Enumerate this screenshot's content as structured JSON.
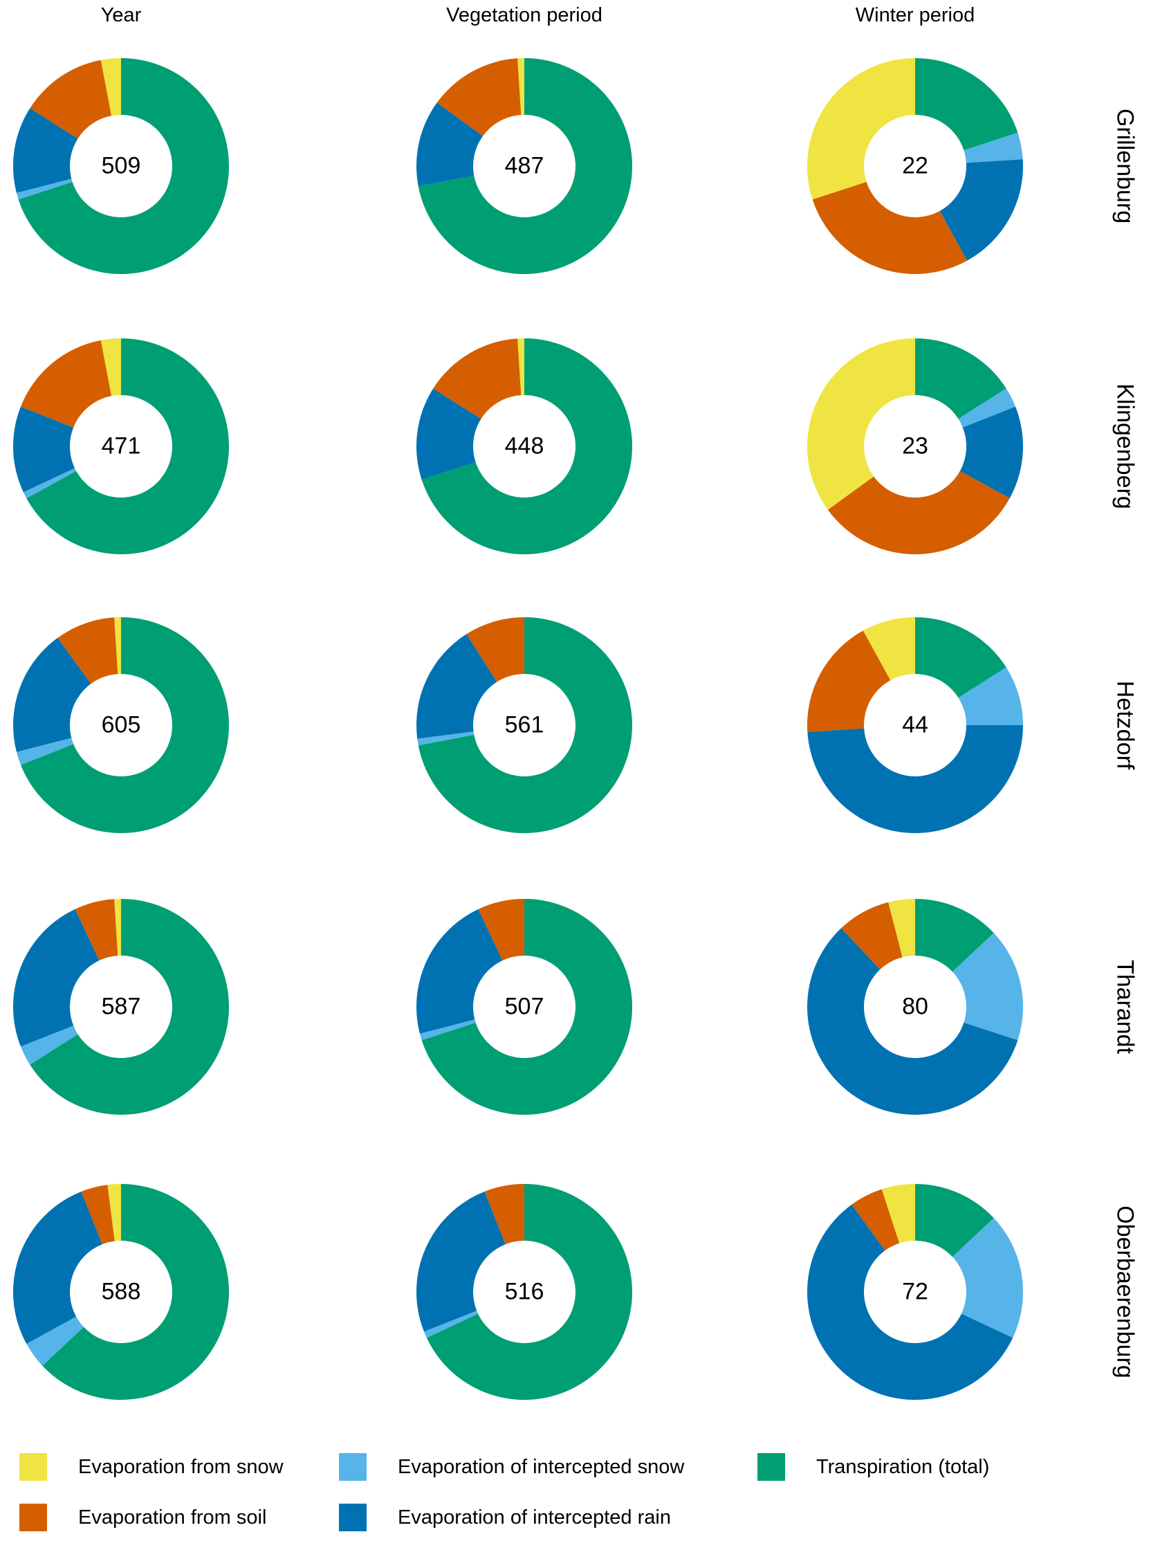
{
  "header": {
    "columns": [
      "Year",
      "Vegetation period",
      "Winter period"
    ]
  },
  "row_labels": [
    "Grillenburg",
    "Klingenberg",
    "Hetzdorf",
    "Tharandt",
    "Oberbaerenburg"
  ],
  "colors": {
    "snow": "#F0E442",
    "soil": "#D55E00",
    "intercepted_snow": "#56B4E9",
    "intercepted_rain": "#0072B2",
    "transpiration": "#009E73"
  },
  "legend": {
    "items": [
      {
        "key": "snow",
        "label": "Evaporation from snow"
      },
      {
        "key": "soil",
        "label": "Evaporation from soil"
      },
      {
        "key": "intercepted_snow",
        "label": "Evaporation of intercepted snow"
      },
      {
        "key": "intercepted_rain",
        "label": "Evaporation of intercepted rain"
      },
      {
        "key": "transpiration",
        "label": "Transpiration (total)"
      }
    ]
  },
  "chart_data": {
    "type": "pie",
    "variant": "donut-grid",
    "columns": [
      "Year",
      "Vegetation period",
      "Winter period"
    ],
    "rows": [
      "Grillenburg",
      "Klingenberg",
      "Hetzdorf",
      "Tharandt",
      "Oberbaerenburg"
    ],
    "segment_order_clockwise": [
      "transpiration",
      "intercepted_snow",
      "intercepted_rain",
      "soil",
      "snow"
    ],
    "center_value_meaning": "total shown in donut hole",
    "cells": [
      {
        "row": "Grillenburg",
        "column": "Year",
        "total": 509,
        "segments_percent": {
          "transpiration": 70,
          "intercepted_snow": 1,
          "intercepted_rain": 13,
          "soil": 13,
          "snow": 3
        }
      },
      {
        "row": "Grillenburg",
        "column": "Vegetation period",
        "total": 487,
        "segments_percent": {
          "transpiration": 72,
          "intercepted_snow": 0,
          "intercepted_rain": 13,
          "soil": 14,
          "snow": 1
        }
      },
      {
        "row": "Grillenburg",
        "column": "Winter period",
        "total": 22,
        "segments_percent": {
          "transpiration": 20,
          "intercepted_snow": 4,
          "intercepted_rain": 18,
          "soil": 28,
          "snow": 30
        }
      },
      {
        "row": "Klingenberg",
        "column": "Year",
        "total": 471,
        "segments_percent": {
          "transpiration": 67,
          "intercepted_snow": 1,
          "intercepted_rain": 13,
          "soil": 16,
          "snow": 3
        }
      },
      {
        "row": "Klingenberg",
        "column": "Vegetation period",
        "total": 448,
        "segments_percent": {
          "transpiration": 70,
          "intercepted_snow": 0,
          "intercepted_rain": 14,
          "soil": 15,
          "snow": 1
        }
      },
      {
        "row": "Klingenberg",
        "column": "Winter period",
        "total": 23,
        "segments_percent": {
          "transpiration": 16,
          "intercepted_snow": 3,
          "intercepted_rain": 14,
          "soil": 32,
          "snow": 35
        }
      },
      {
        "row": "Hetzdorf",
        "column": "Year",
        "total": 605,
        "segments_percent": {
          "transpiration": 69,
          "intercepted_snow": 2,
          "intercepted_rain": 19,
          "soil": 9,
          "snow": 1
        }
      },
      {
        "row": "Hetzdorf",
        "column": "Vegetation period",
        "total": 561,
        "segments_percent": {
          "transpiration": 72,
          "intercepted_snow": 1,
          "intercepted_rain": 18,
          "soil": 9,
          "snow": 0
        }
      },
      {
        "row": "Hetzdorf",
        "column": "Winter period",
        "total": 44,
        "segments_percent": {
          "transpiration": 16,
          "intercepted_snow": 9,
          "intercepted_rain": 49,
          "soil": 18,
          "snow": 8
        }
      },
      {
        "row": "Tharandt",
        "column": "Year",
        "total": 587,
        "segments_percent": {
          "transpiration": 66,
          "intercepted_snow": 3,
          "intercepted_rain": 24,
          "soil": 6,
          "snow": 1
        }
      },
      {
        "row": "Tharandt",
        "column": "Vegetation period",
        "total": 507,
        "segments_percent": {
          "transpiration": 70,
          "intercepted_snow": 1,
          "intercepted_rain": 22,
          "soil": 7,
          "snow": 0
        }
      },
      {
        "row": "Tharandt",
        "column": "Winter period",
        "total": 80,
        "segments_percent": {
          "transpiration": 13,
          "intercepted_snow": 17,
          "intercepted_rain": 58,
          "soil": 8,
          "snow": 4
        }
      },
      {
        "row": "Oberbaerenburg",
        "column": "Year",
        "total": 588,
        "segments_percent": {
          "transpiration": 63,
          "intercepted_snow": 4,
          "intercepted_rain": 27,
          "soil": 4,
          "snow": 2
        }
      },
      {
        "row": "Oberbaerenburg",
        "column": "Vegetation period",
        "total": 516,
        "segments_percent": {
          "transpiration": 68,
          "intercepted_snow": 1,
          "intercepted_rain": 25,
          "soil": 6,
          "snow": 0
        }
      },
      {
        "row": "Oberbaerenburg",
        "column": "Winter period",
        "total": 72,
        "segments_percent": {
          "transpiration": 13,
          "intercepted_snow": 19,
          "intercepted_rain": 58,
          "soil": 5,
          "snow": 5
        }
      }
    ]
  }
}
